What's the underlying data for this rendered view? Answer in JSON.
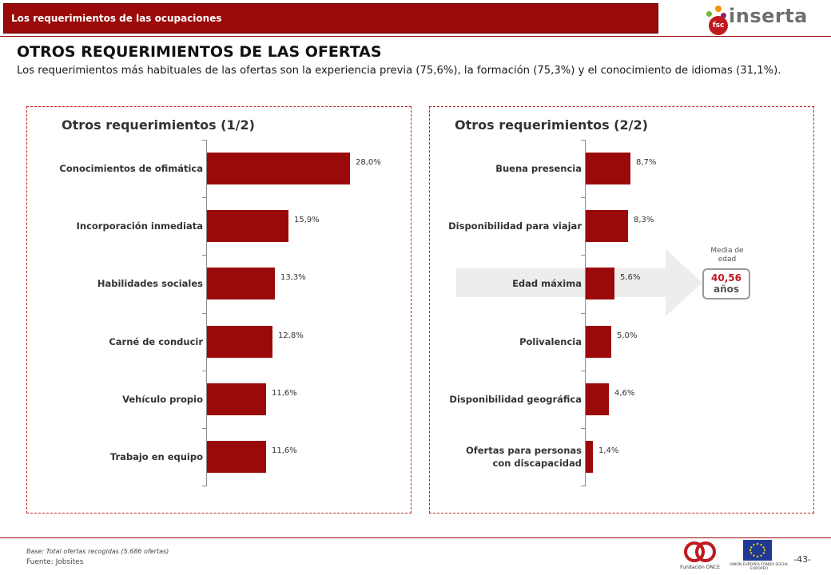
{
  "header": {
    "title": "Los requerimientos de las ocupaciones",
    "logo_text": "inserta",
    "logo_mark": "fsc"
  },
  "page_title": "OTROS REQUERIMIENTOS DE LAS OFERTAS",
  "intro": "Los requerimientos más habituales de las ofertas son la experiencia previa (75,6%), la formación (75,3%) y el conocimiento de idiomas (31,1%).",
  "chart_data": [
    {
      "type": "bar",
      "orientation": "horizontal",
      "title": "Otros requerimientos (1/2)",
      "unit": "%",
      "categories": [
        "Conocimientos de ofimática",
        "Incorporación inmediata",
        "Habilidades sociales",
        "Carné de conducir",
        "Vehículo propio",
        "Trabajo en equipo"
      ],
      "values": [
        28.0,
        15.9,
        13.3,
        12.8,
        11.6,
        11.6
      ],
      "value_labels": [
        "28,0%",
        "15,9%",
        "13,3%",
        "12,8%",
        "11,6%",
        "11,6%"
      ],
      "xlim": [
        0,
        30
      ],
      "color": "#9b0a0a"
    },
    {
      "type": "bar",
      "orientation": "horizontal",
      "title": "Otros requerimientos (2/2)",
      "unit": "%",
      "categories": [
        "Buena presencia",
        "Disponibilidad para viajar",
        "Edad máxima",
        "Polivalencia",
        "Disponibilidad geográfica",
        "Ofertas para personas con discapacidad"
      ],
      "values": [
        8.7,
        8.3,
        5.6,
        5.0,
        4.6,
        1.4
      ],
      "value_labels": [
        "8,7%",
        "8,3%",
        "5,6%",
        "5,0%",
        "4,6%",
        "1,4%"
      ],
      "xlim": [
        0,
        30
      ],
      "highlighted_category": "Edad máxima",
      "color": "#9b0a0a"
    }
  ],
  "callout": {
    "caption": "Media de edad",
    "value": "40,56",
    "unit": "años"
  },
  "footer": {
    "base": "Base: Total ofertas recogidas (5.686 ofertas)",
    "source": "Fuente: Jobsites",
    "page": "-43-",
    "once_caption": "Fundación ONCE",
    "eu_caption": "UNIÓN EUROPEA FONDO SOCIAL EUROPEO"
  },
  "colors": {
    "brand": "#9b0a0a",
    "accent": "#c0191f",
    "highlight": "#ededed"
  }
}
